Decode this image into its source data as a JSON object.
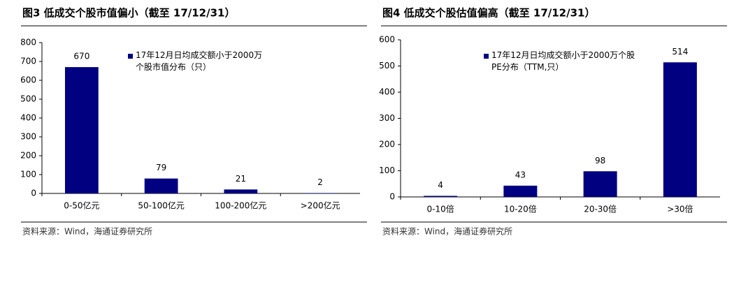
{
  "chart_data": [
    {
      "type": "bar",
      "title": "图3 低成交个股市值偏小（截至 17/12/31）",
      "categories": [
        "0-50亿元",
        "50-100亿元",
        "100-200亿元",
        ">200亿元"
      ],
      "series": [
        {
          "name": "17年12月日均成交额小于2000万个股市值分布（只）",
          "color": "#000080",
          "values": [
            670,
            79,
            21,
            2
          ]
        }
      ],
      "ylim": [
        0,
        800
      ],
      "yticks": [
        0,
        100,
        200,
        300,
        400,
        500,
        600,
        700,
        800
      ],
      "source": "资料来源：Wind，海通证券研究所"
    },
    {
      "type": "bar",
      "title": "图4 低成交个股估值偏高（截至 17/12/31）",
      "categories": [
        "0-10倍",
        "10-20倍",
        "20-30倍",
        ">30倍"
      ],
      "series": [
        {
          "name": "17年12月日均成交额小于2000万个股PE分布（TTM,只）",
          "color": "#000080",
          "values": [
            4,
            43,
            98,
            514
          ]
        }
      ],
      "ylim": [
        0,
        600
      ],
      "yticks": [
        0,
        100,
        200,
        300,
        400,
        500,
        600
      ],
      "source": "资料来源：Wind，海通证券研究所"
    }
  ]
}
